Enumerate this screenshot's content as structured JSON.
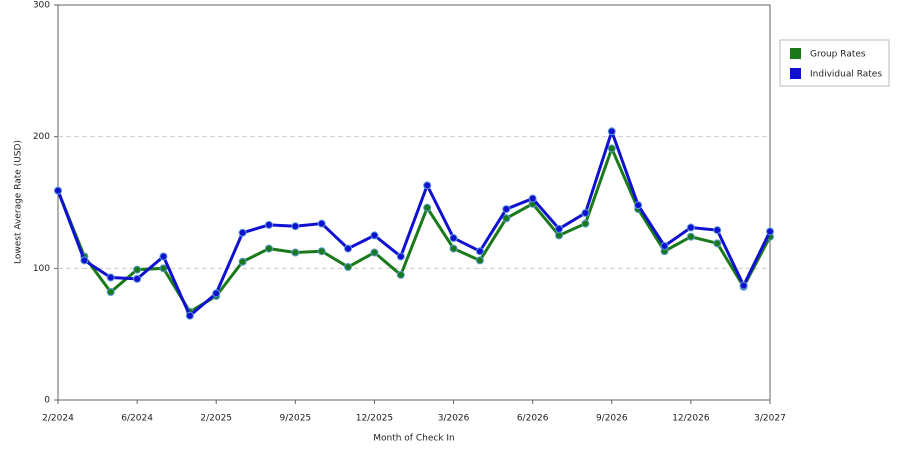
{
  "chart_data": {
    "type": "line",
    "x_label": "Month of Check In",
    "y_label": "Lowest Average Rate (USD)",
    "categories": [
      "2/2024",
      null,
      null,
      "6/2024",
      null,
      null,
      "2/2025",
      null,
      null,
      "9/2025",
      null,
      null,
      "12/2025",
      null,
      null,
      "3/2026",
      null,
      null,
      "6/2026",
      null,
      null,
      "9/2026",
      null,
      null,
      "12/2026",
      null,
      null,
      "3/2027"
    ],
    "series": [
      {
        "name": "Group Rates",
        "color": "#1a7a1a",
        "values": [
          159,
          109,
          82,
          99,
          100,
          67,
          79,
          105,
          115,
          112,
          113,
          101,
          112,
          95,
          146,
          115,
          106,
          138,
          149,
          125,
          134,
          191,
          145,
          113,
          124,
          119,
          86,
          124
        ]
      },
      {
        "name": "Individual Rates",
        "color": "#1010d0",
        "values": [
          159,
          106,
          93,
          92,
          109,
          64,
          81,
          127,
          133,
          132,
          134,
          115,
          125,
          109,
          163,
          123,
          113,
          145,
          153,
          130,
          142,
          204,
          148,
          117,
          131,
          129,
          87,
          128
        ]
      }
    ],
    "ylim": [
      0,
      300
    ],
    "yticks": [
      0,
      100,
      200,
      300
    ],
    "grid": true,
    "legend": "top-right"
  }
}
